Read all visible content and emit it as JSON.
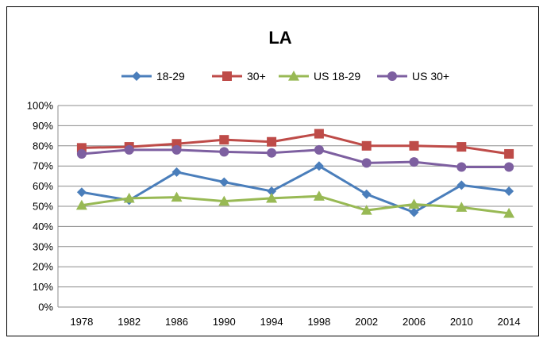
{
  "chart_data": {
    "type": "line",
    "title": "LA",
    "xlabel": "",
    "ylabel": "",
    "x": [
      "1978",
      "1982",
      "1986",
      "1990",
      "1994",
      "1998",
      "2002",
      "2006",
      "2010",
      "2014"
    ],
    "ylim": [
      0,
      100
    ],
    "yticks": [
      "0%",
      "10%",
      "20%",
      "30%",
      "40%",
      "50%",
      "60%",
      "70%",
      "80%",
      "90%",
      "100%"
    ],
    "grid": true,
    "legend_position": "top",
    "series": [
      {
        "name": "18-29",
        "color": "#4a7ebb",
        "marker": "diamond",
        "values": [
          57,
          53,
          67,
          62,
          57.5,
          70,
          56,
          47,
          60.5,
          57.5
        ]
      },
      {
        "name": "30+",
        "color": "#be4b48",
        "marker": "square",
        "values": [
          79,
          79.5,
          81,
          83,
          82,
          86,
          80,
          80,
          79.5,
          76
        ]
      },
      {
        "name": "US 18-29",
        "color": "#98b954",
        "marker": "triangle",
        "values": [
          50.5,
          54,
          54.5,
          52.5,
          54,
          55,
          48,
          51,
          49.5,
          46.5
        ]
      },
      {
        "name": "US 30+",
        "color": "#7d5fa0",
        "marker": "circle",
        "values": [
          76,
          78,
          78,
          77,
          76.5,
          78,
          71.5,
          72,
          69.5,
          69.5
        ]
      }
    ]
  }
}
